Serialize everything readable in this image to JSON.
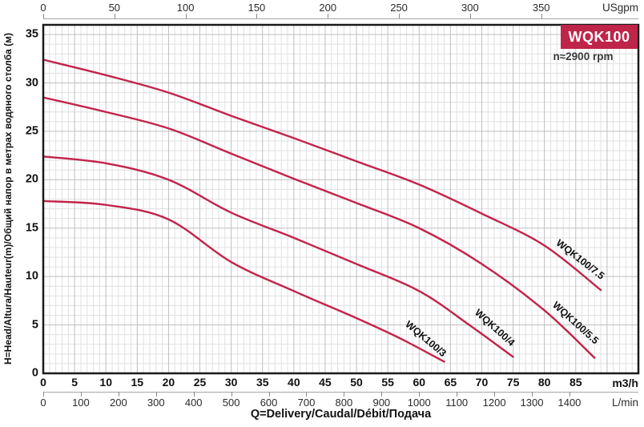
{
  "chart_data": {
    "type": "line",
    "title": "WQK100",
    "annotation": "n≈2900 rpm",
    "xlabel": "Q=Delivery/Caudal/Débit/Подача",
    "ylabel": "H=Head/Altura/Hauteur(m)/Общий напор в метрах водяного столба (м)",
    "x_axes": {
      "usgpm": {
        "unit": "USgpm",
        "ticks": [
          0,
          50,
          100,
          150,
          200,
          250,
          300,
          350
        ]
      },
      "m3h": {
        "unit": "m3/h",
        "ticks": [
          0,
          5,
          10,
          15,
          20,
          25,
          30,
          35,
          40,
          45,
          50,
          55,
          60,
          65,
          70,
          75,
          80,
          85
        ]
      },
      "lmin": {
        "unit": "L/min",
        "ticks": [
          0,
          100,
          200,
          300,
          400,
          500,
          600,
          700,
          800,
          900,
          1000,
          1100,
          1200,
          1300,
          1400
        ]
      }
    },
    "y_axis": {
      "unit": "m",
      "ticks": [
        0,
        5,
        10,
        15,
        20,
        25,
        30,
        35
      ],
      "range": [
        0,
        36
      ]
    },
    "x_range_m3h": [
      0,
      95
    ],
    "grid": {
      "minor_step_m3h": 1,
      "major_step_m3h": 5,
      "minor_step_m": 1,
      "major_step_m": 5
    },
    "legend_position": "labels-on-curves",
    "series": [
      {
        "name": "WQK100/7.5",
        "x_m3h": [
          0,
          10,
          20,
          30,
          40,
          50,
          60,
          70,
          80,
          89
        ],
        "head_m": [
          32.4,
          30.8,
          29.0,
          26.6,
          24.3,
          21.9,
          19.5,
          16.5,
          13.2,
          8.6
        ]
      },
      {
        "name": "WQK100/5.5",
        "x_m3h": [
          0,
          10,
          20,
          30,
          40,
          50,
          60,
          70,
          80,
          88
        ],
        "head_m": [
          28.5,
          27.0,
          25.3,
          22.7,
          20.1,
          17.6,
          15.0,
          11.3,
          6.5,
          1.6
        ]
      },
      {
        "name": "WQK100/4",
        "x_m3h": [
          0,
          10,
          20,
          30,
          40,
          50,
          60,
          68,
          75
        ],
        "head_m": [
          22.4,
          21.7,
          20.0,
          16.6,
          14.0,
          11.3,
          8.5,
          5.0,
          1.7
        ]
      },
      {
        "name": "WQK100/3",
        "x_m3h": [
          0,
          10,
          20,
          30,
          40,
          50,
          57,
          64
        ],
        "head_m": [
          17.8,
          17.4,
          15.9,
          11.5,
          8.5,
          5.7,
          3.6,
          1.2
        ]
      }
    ],
    "colors": {
      "curve": "#c22349",
      "badge_bg": "#bf2449",
      "badge_text": "#ffffff",
      "grid_minor": "#e0e0e0",
      "grid_major": "#bfbfbf",
      "border": "#1a1a1a",
      "axis_text": "#2b2b2b"
    }
  }
}
